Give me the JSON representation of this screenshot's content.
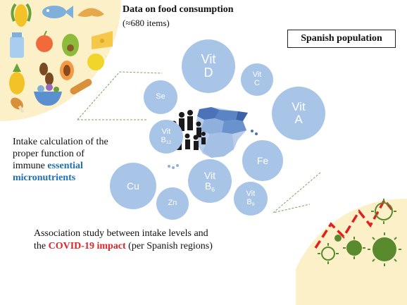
{
  "title": "Data on food consumption",
  "subtitle": "(≈680 items)",
  "population_label": "Spanish population",
  "intake_text": {
    "line1": "Intake calculation of the",
    "line2": "proper function of",
    "line3_prefix": "immune",
    "highlight1": "essential",
    "highlight2": "micronutrients"
  },
  "association_text": {
    "line1": "Association study between intake levels and",
    "prefix": "the",
    "highlight": "COVID-19 impact",
    "suffix": "(per Spanish regions)"
  },
  "nutrients": [
    {
      "id": "vit-d",
      "label": "Vit",
      "sub_label": "D"
    },
    {
      "id": "vit-c",
      "label": "Vit",
      "sub_label": "C"
    },
    {
      "id": "vit-a",
      "label": "Vit",
      "sub_label": "A"
    },
    {
      "id": "se",
      "label": "Se"
    },
    {
      "id": "vit-b12",
      "label": "Vit",
      "subscript": "B",
      "subscript_num": "12"
    },
    {
      "id": "fe",
      "label": "Fe"
    },
    {
      "id": "cu",
      "label": "Cu"
    },
    {
      "id": "vit-b6",
      "label": "Vit",
      "subscript": "B",
      "subscript_num": "6"
    },
    {
      "id": "vit-b9",
      "label": "Vit",
      "subscript": "B",
      "subscript_num": "9"
    },
    {
      "id": "zn",
      "label": "Zn"
    }
  ],
  "colors": {
    "bubble": "#a8c5e8",
    "food_bg": "#fbf0c8",
    "covid_bg": "#fbf0c8",
    "virus": "#5a8a2e",
    "trend_line": "#e02020",
    "highlight_blue": "#1f6fb2",
    "highlight_red": "#d8262a"
  },
  "icons": [
    "corn-icon",
    "fish-icon",
    "croissant-icon",
    "milk-icon",
    "apple-icon",
    "avocado-icon",
    "cheese-icon",
    "pineapple-icon",
    "coffee-beans-icon",
    "papaya-icon",
    "lemon-icon",
    "bowl-icon",
    "bread-icon",
    "chicken-leg-icon",
    "family-icon",
    "spain-map-icon",
    "virus-icon"
  ]
}
